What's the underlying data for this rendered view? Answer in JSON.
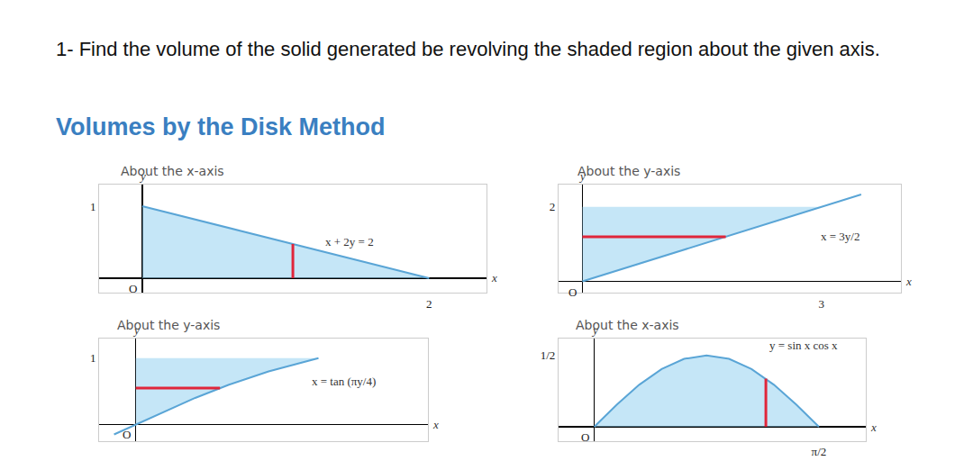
{
  "question": "1- Find the volume of the solid generated be revolving the shaded region about the given axis.",
  "section_title": "Volumes by the Disk Method",
  "chart_data": [
    {
      "type": "area",
      "title": "About the x-axis",
      "curve_label": "x + 2y = 2",
      "x_label": "x",
      "y_label": "y",
      "origin_label": "O",
      "x": [
        0,
        2
      ],
      "y": [
        1,
        0
      ],
      "slice": {
        "x": [
          1.05,
          1.05
        ],
        "y": [
          0,
          0.475
        ],
        "color": "#e0263b"
      },
      "color": "#5aa5d6",
      "xlim": [
        -0.3,
        2.4
      ],
      "ylim": [
        -0.2,
        1.3
      ],
      "xticks": [
        2
      ],
      "yticks": [
        1
      ],
      "grid": false
    },
    {
      "type": "area",
      "title": "About the y-axis",
      "curve_label": "x = 3y/2",
      "x_label": "x",
      "y_label": "y",
      "origin_label": "O",
      "x": [
        0,
        3.5
      ],
      "y": [
        0,
        2.333
      ],
      "region": {
        "x": [
          0,
          3,
          0
        ],
        "y": [
          0,
          2,
          2
        ]
      },
      "slice": {
        "x": [
          0,
          1.8
        ],
        "y": [
          1.2,
          1.2
        ],
        "color": "#e0263b"
      },
      "color": "#5aa5d6",
      "xlim": [
        -0.3,
        4
      ],
      "ylim": [
        -0.3,
        2.6
      ],
      "xticks": [
        3
      ],
      "yticks": [
        2
      ],
      "grid": false
    },
    {
      "type": "area",
      "title": "About the y-axis",
      "curve_label": "x = tan (πy/4)",
      "x_label": "x",
      "y_label": "y",
      "origin_label": "O",
      "x": [
        -0.119,
        0,
        0.158,
        0.325,
        0.51,
        0.727,
        1.0
      ],
      "y": [
        -0.15,
        0,
        0.2,
        0.4,
        0.6,
        0.8,
        1.0
      ],
      "region": {
        "x": [
          0,
          0.158,
          0.325,
          0.51,
          0.727,
          1.0,
          0
        ],
        "y": [
          0,
          0.2,
          0.4,
          0.6,
          0.8,
          1.0,
          1.0
        ]
      },
      "slice": {
        "x": [
          0,
          0.461
        ],
        "y": [
          0.55,
          0.55
        ],
        "color": "#e0263b"
      },
      "color": "#5aa5d6",
      "xlim": [
        -0.2,
        1.6
      ],
      "ylim": [
        -0.25,
        1.3
      ],
      "xticks": [],
      "yticks": [
        1
      ],
      "grid": false
    },
    {
      "type": "area",
      "title": "About the x-axis",
      "curve_label": "y = sin x cos x",
      "x_label": "x",
      "y_label": "y",
      "origin_label": "O",
      "x": [
        0,
        0.1571,
        0.3142,
        0.4712,
        0.6283,
        0.7854,
        0.9425,
        1.0996,
        1.2566,
        1.4137,
        1.5708
      ],
      "y": [
        0,
        0.1545,
        0.2939,
        0.4045,
        0.4755,
        0.5,
        0.4755,
        0.4045,
        0.2939,
        0.1545,
        0
      ],
      "slice": {
        "x": [
          1.2,
          1.2
        ],
        "y": [
          0,
          0.3378
        ],
        "color": "#e0263b"
      },
      "color": "#5aa5d6",
      "xlim": [
        -0.25,
        1.9
      ],
      "ylim": [
        -0.1,
        0.62
      ],
      "xticks": [
        {
          "value": 1.5708,
          "label": "π/2"
        }
      ],
      "yticks": [
        {
          "value": 0.5,
          "label": "1/2"
        }
      ],
      "grid": false
    }
  ]
}
